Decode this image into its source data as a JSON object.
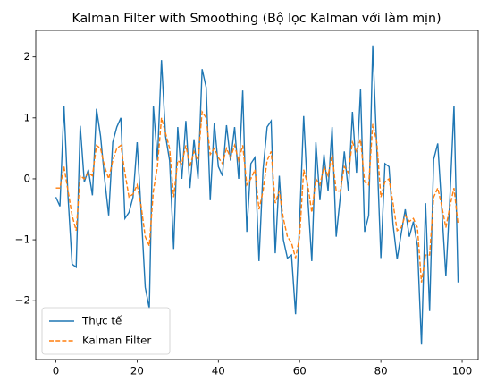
{
  "chart_data": {
    "type": "line",
    "title": "Kalman Filter with Smoothing (Bộ lọc Kalman với làm mịn)",
    "x": [
      0,
      1,
      2,
      3,
      4,
      5,
      6,
      7,
      8,
      9,
      10,
      11,
      12,
      13,
      14,
      15,
      16,
      17,
      18,
      19,
      20,
      21,
      22,
      23,
      24,
      25,
      26,
      27,
      28,
      29,
      30,
      31,
      32,
      33,
      34,
      35,
      36,
      37,
      38,
      39,
      40,
      41,
      42,
      43,
      44,
      45,
      46,
      47,
      48,
      49,
      50,
      51,
      52,
      53,
      54,
      55,
      56,
      57,
      58,
      59,
      60,
      61,
      62,
      63,
      64,
      65,
      66,
      67,
      68,
      69,
      70,
      71,
      72,
      73,
      74,
      75,
      76,
      77,
      78,
      79,
      80,
      81,
      82,
      83,
      84,
      85,
      86,
      87,
      88,
      89,
      90,
      91,
      92,
      93,
      94,
      95,
      96,
      97,
      98,
      99
    ],
    "series": [
      {
        "name": "Thực tế",
        "color": "#1f77b4",
        "dash": "solid",
        "values": [
          -0.3,
          -0.45,
          1.2,
          -0.3,
          -1.4,
          -1.45,
          0.87,
          -0.05,
          0.15,
          -0.27,
          1.15,
          0.7,
          0.0,
          -0.6,
          0.6,
          0.85,
          1.0,
          -0.65,
          -0.55,
          -0.3,
          0.6,
          -0.55,
          -1.78,
          -2.13,
          1.2,
          0.3,
          1.95,
          0.7,
          0.3,
          -1.15,
          0.85,
          0.0,
          0.95,
          -0.15,
          0.65,
          0.0,
          1.8,
          1.5,
          -0.35,
          0.92,
          0.2,
          0.05,
          0.88,
          0.3,
          0.85,
          0.0,
          1.45,
          -0.87,
          0.25,
          0.35,
          -1.35,
          0.15,
          0.85,
          0.95,
          -1.22,
          0.05,
          -1.0,
          -1.3,
          -1.25,
          -2.22,
          -0.7,
          1.03,
          -0.3,
          -1.35,
          0.6,
          -0.35,
          0.4,
          -0.2,
          0.85,
          -0.95,
          -0.3,
          0.45,
          -0.2,
          1.1,
          0.1,
          1.47,
          -0.87,
          -0.6,
          2.19,
          0.5,
          -1.3,
          0.25,
          0.2,
          -0.75,
          -1.32,
          -0.9,
          -0.5,
          -0.95,
          -0.7,
          -1.1,
          -2.72,
          -0.4,
          -2.17,
          0.32,
          0.58,
          -0.5,
          -1.6,
          -0.3,
          1.2,
          -1.7
        ]
      },
      {
        "name": "Kalman Filter",
        "color": "#ff7f0e",
        "dash": "dashed",
        "values": [
          -0.15,
          -0.15,
          0.2,
          -0.2,
          -0.6,
          -0.85,
          0.05,
          0.0,
          0.1,
          0.05,
          0.55,
          0.5,
          0.2,
          0.0,
          0.3,
          0.5,
          0.55,
          0.1,
          -0.3,
          -0.25,
          -0.1,
          -0.45,
          -0.95,
          -1.1,
          -0.2,
          0.2,
          1.0,
          0.75,
          0.5,
          -0.3,
          0.3,
          0.25,
          0.55,
          0.2,
          0.45,
          0.3,
          1.1,
          1.0,
          0.4,
          0.5,
          0.35,
          0.25,
          0.5,
          0.35,
          0.55,
          0.3,
          0.55,
          -0.1,
          0.0,
          0.15,
          -0.5,
          -0.2,
          0.3,
          0.45,
          -0.4,
          -0.2,
          -0.65,
          -0.95,
          -1.05,
          -1.3,
          -0.95,
          0.15,
          -0.1,
          -0.55,
          0.0,
          -0.1,
          0.2,
          0.05,
          0.4,
          -0.2,
          -0.2,
          0.2,
          0.1,
          0.6,
          0.45,
          0.65,
          -0.05,
          -0.1,
          0.9,
          0.6,
          -0.3,
          -0.05,
          0.0,
          -0.4,
          -0.85,
          -0.8,
          -0.6,
          -0.7,
          -0.65,
          -0.8,
          -1.7,
          -1.25,
          -1.25,
          -0.3,
          -0.15,
          -0.45,
          -0.8,
          -0.45,
          -0.15,
          -0.75
        ]
      }
    ],
    "xlim": [
      -4.95,
      103.95
    ],
    "xticks": [
      0,
      20,
      40,
      60,
      80,
      100
    ],
    "ylim": [
      -2.966,
      2.436
    ],
    "yticks": [
      {
        "value": -2,
        "label": "−2"
      },
      {
        "value": -1,
        "label": "−1"
      },
      0,
      1,
      2
    ],
    "grid": false,
    "legend": "lower left"
  }
}
